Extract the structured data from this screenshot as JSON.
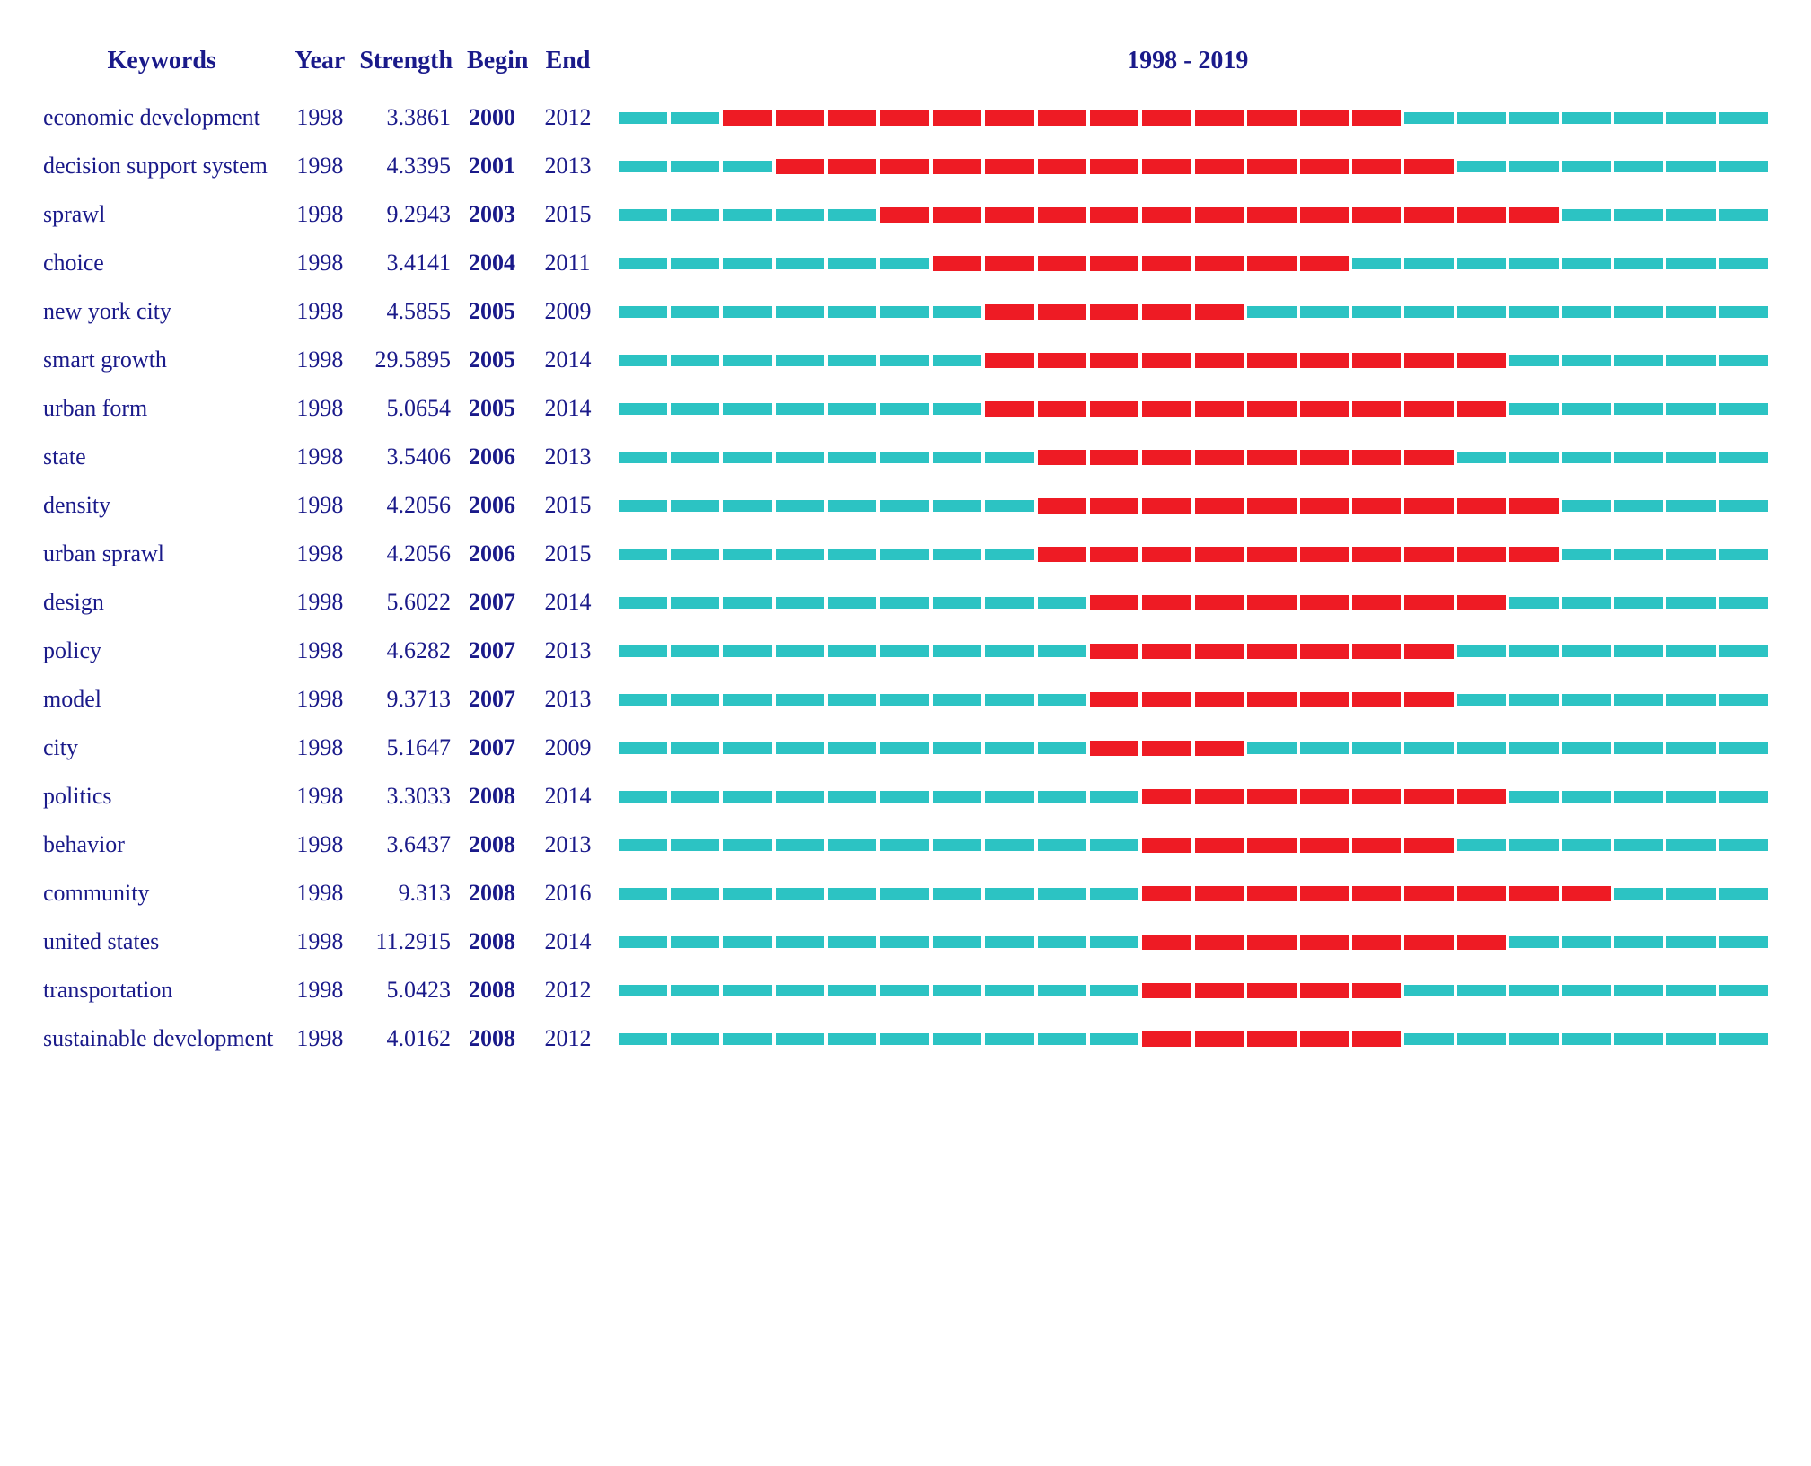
{
  "headers": {
    "keywords": "Keywords",
    "year": "Year",
    "strength": "Strength",
    "begin": "Begin",
    "end": "End",
    "range": "1998 - 2019"
  },
  "timeline": {
    "start_year": 1998,
    "end_year": 2019,
    "colors": {
      "inactive": "#2cc3c3",
      "active": "#ee1b24",
      "text": "#1a1a8a",
      "background": "#ffffff"
    }
  },
  "rows": [
    {
      "keyword": "economic development",
      "year": "1998",
      "strength": "3.3861",
      "begin": "2000",
      "end": "2012"
    },
    {
      "keyword": "decision support system",
      "year": "1998",
      "strength": "4.3395",
      "begin": "2001",
      "end": "2013"
    },
    {
      "keyword": "sprawl",
      "year": "1998",
      "strength": "9.2943",
      "begin": "2003",
      "end": "2015"
    },
    {
      "keyword": "choice",
      "year": "1998",
      "strength": "3.4141",
      "begin": "2004",
      "end": "2011"
    },
    {
      "keyword": "new york city",
      "year": "1998",
      "strength": "4.5855",
      "begin": "2005",
      "end": "2009"
    },
    {
      "keyword": "smart growth",
      "year": "1998",
      "strength": "29.5895",
      "begin": "2005",
      "end": "2014"
    },
    {
      "keyword": "urban form",
      "year": "1998",
      "strength": "5.0654",
      "begin": "2005",
      "end": "2014"
    },
    {
      "keyword": "state",
      "year": "1998",
      "strength": "3.5406",
      "begin": "2006",
      "end": "2013"
    },
    {
      "keyword": "density",
      "year": "1998",
      "strength": "4.2056",
      "begin": "2006",
      "end": "2015"
    },
    {
      "keyword": "urban sprawl",
      "year": "1998",
      "strength": "4.2056",
      "begin": "2006",
      "end": "2015"
    },
    {
      "keyword": "design",
      "year": "1998",
      "strength": "5.6022",
      "begin": "2007",
      "end": "2014"
    },
    {
      "keyword": "policy",
      "year": "1998",
      "strength": "4.6282",
      "begin": "2007",
      "end": "2013"
    },
    {
      "keyword": "model",
      "year": "1998",
      "strength": "9.3713",
      "begin": "2007",
      "end": "2013"
    },
    {
      "keyword": "city",
      "year": "1998",
      "strength": "5.1647",
      "begin": "2007",
      "end": "2009"
    },
    {
      "keyword": "politics",
      "year": "1998",
      "strength": "3.3033",
      "begin": "2008",
      "end": "2014"
    },
    {
      "keyword": "behavior",
      "year": "1998",
      "strength": "3.6437",
      "begin": "2008",
      "end": "2013"
    },
    {
      "keyword": "community",
      "year": "1998",
      "strength": "9.313",
      "begin": "2008",
      "end": "2016"
    },
    {
      "keyword": "united states",
      "year": "1998",
      "strength": "11.2915",
      "begin": "2008",
      "end": "2014"
    },
    {
      "keyword": "transportation",
      "year": "1998",
      "strength": "5.0423",
      "begin": "2008",
      "end": "2012"
    },
    {
      "keyword": "sustainable development",
      "year": "1998",
      "strength": "4.0162",
      "begin": "2008",
      "end": "2012"
    }
  ]
}
